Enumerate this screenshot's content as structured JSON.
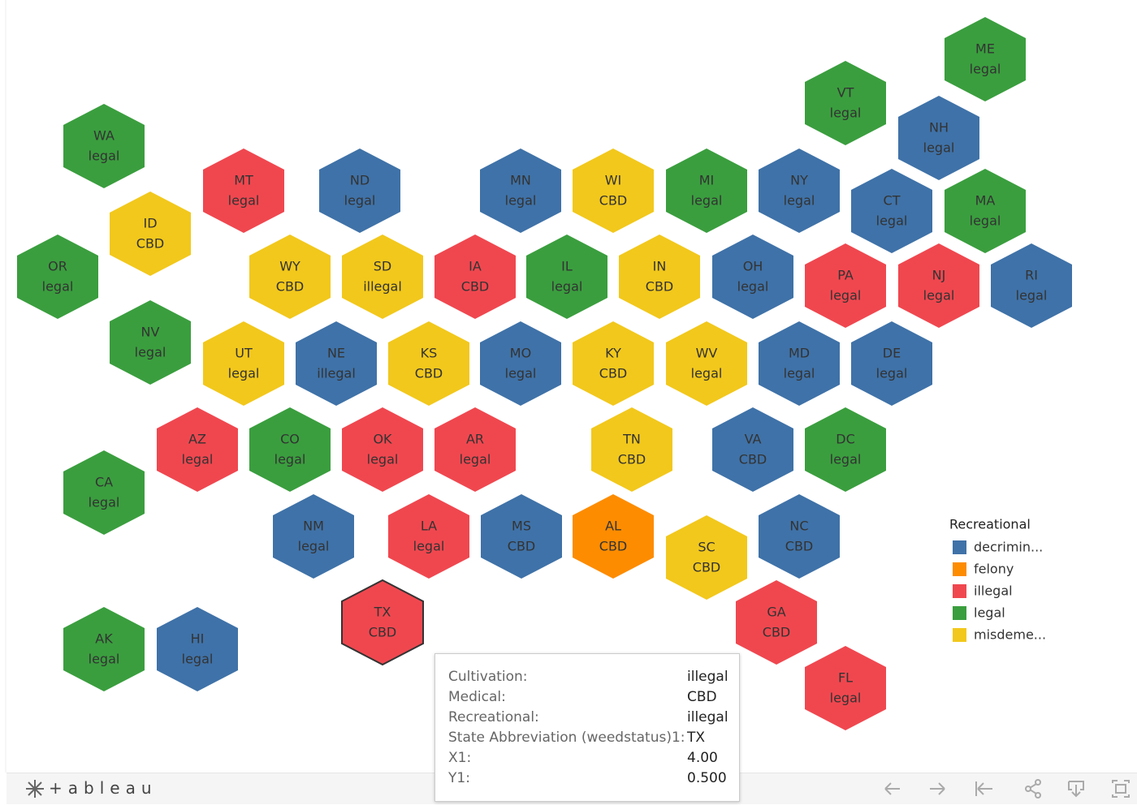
{
  "map": {
    "states": [
      {
        "abbr": "ME",
        "label": "legal",
        "color": "#3a9e3e"
      },
      {
        "abbr": "VT",
        "label": "legal",
        "color": "#3a9e3e"
      },
      {
        "abbr": "NH",
        "label": "legal",
        "color": "#3f72a8"
      },
      {
        "abbr": "WA",
        "label": "legal",
        "color": "#3a9e3e"
      },
      {
        "abbr": "MT",
        "label": "legal",
        "color": "#f0474f"
      },
      {
        "abbr": "ND",
        "label": "legal",
        "color": "#3f72a8"
      },
      {
        "abbr": "MN",
        "label": "legal",
        "color": "#3f72a8"
      },
      {
        "abbr": "WI",
        "label": "CBD",
        "color": "#f2c81c"
      },
      {
        "abbr": "MI",
        "label": "legal",
        "color": "#3a9e3e"
      },
      {
        "abbr": "NY",
        "label": "legal",
        "color": "#3f72a8"
      },
      {
        "abbr": "CT",
        "label": "legal",
        "color": "#3f72a8"
      },
      {
        "abbr": "MA",
        "label": "legal",
        "color": "#3a9e3e"
      },
      {
        "abbr": "ID",
        "label": "CBD",
        "color": "#f2c81c"
      },
      {
        "abbr": "OR",
        "label": "legal",
        "color": "#3a9e3e"
      },
      {
        "abbr": "WY",
        "label": "CBD",
        "color": "#f2c81c"
      },
      {
        "abbr": "SD",
        "label": "illegal",
        "color": "#f2c81c"
      },
      {
        "abbr": "IA",
        "label": "CBD",
        "color": "#f0474f"
      },
      {
        "abbr": "IL",
        "label": "legal",
        "color": "#3a9e3e"
      },
      {
        "abbr": "IN",
        "label": "CBD",
        "color": "#f2c81c"
      },
      {
        "abbr": "OH",
        "label": "legal",
        "color": "#3f72a8"
      },
      {
        "abbr": "PA",
        "label": "legal",
        "color": "#f0474f"
      },
      {
        "abbr": "NJ",
        "label": "legal",
        "color": "#f0474f"
      },
      {
        "abbr": "RI",
        "label": "legal",
        "color": "#3f72a8"
      },
      {
        "abbr": "NV",
        "label": "legal",
        "color": "#3a9e3e"
      },
      {
        "abbr": "UT",
        "label": "legal",
        "color": "#f2c81c"
      },
      {
        "abbr": "NE",
        "label": "illegal",
        "color": "#3f72a8"
      },
      {
        "abbr": "KS",
        "label": "CBD",
        "color": "#f2c81c"
      },
      {
        "abbr": "MO",
        "label": "legal",
        "color": "#3f72a8"
      },
      {
        "abbr": "KY",
        "label": "CBD",
        "color": "#f2c81c"
      },
      {
        "abbr": "WV",
        "label": "legal",
        "color": "#f2c81c"
      },
      {
        "abbr": "MD",
        "label": "legal",
        "color": "#3f72a8"
      },
      {
        "abbr": "DE",
        "label": "legal",
        "color": "#3f72a8"
      },
      {
        "abbr": "AZ",
        "label": "legal",
        "color": "#f0474f"
      },
      {
        "abbr": "CO",
        "label": "legal",
        "color": "#3a9e3e"
      },
      {
        "abbr": "OK",
        "label": "legal",
        "color": "#f0474f"
      },
      {
        "abbr": "AR",
        "label": "legal",
        "color": "#f0474f"
      },
      {
        "abbr": "TN",
        "label": "CBD",
        "color": "#f2c81c"
      },
      {
        "abbr": "VA",
        "label": "CBD",
        "color": "#3f72a8"
      },
      {
        "abbr": "DC",
        "label": "legal",
        "color": "#3a9e3e"
      },
      {
        "abbr": "CA",
        "label": "legal",
        "color": "#3a9e3e"
      },
      {
        "abbr": "NM",
        "label": "legal",
        "color": "#3f72a8"
      },
      {
        "abbr": "LA",
        "label": "legal",
        "color": "#f0474f"
      },
      {
        "abbr": "MS",
        "label": "CBD",
        "color": "#3f72a8"
      },
      {
        "abbr": "AL",
        "label": "CBD",
        "color": "#fd8c00"
      },
      {
        "abbr": "SC",
        "label": "CBD",
        "color": "#f2c81c"
      },
      {
        "abbr": "NC",
        "label": "CBD",
        "color": "#3f72a8"
      },
      {
        "abbr": "TX",
        "label": "CBD",
        "color": "#f0474f"
      },
      {
        "abbr": "GA",
        "label": "CBD",
        "color": "#f0474f"
      },
      {
        "abbr": "AK",
        "label": "legal",
        "color": "#3a9e3e"
      },
      {
        "abbr": "HI",
        "label": "legal",
        "color": "#3f72a8"
      },
      {
        "abbr": "FL",
        "label": "legal",
        "color": "#f0474f"
      }
    ]
  },
  "legend": {
    "title": "Recreational",
    "items": [
      {
        "name": "decrimin...",
        "color": "#3f72a8"
      },
      {
        "name": "felony",
        "color": "#fd8c00"
      },
      {
        "name": "illegal",
        "color": "#f0474f"
      },
      {
        "name": "legal",
        "color": "#3a9e3e"
      },
      {
        "name": "misdeme...",
        "color": "#f2c81c"
      }
    ]
  },
  "tooltip": {
    "rows": [
      {
        "label": "Cultivation:",
        "value": "illegal"
      },
      {
        "label": "Medical:",
        "value": "CBD"
      },
      {
        "label": "Recreational:",
        "value": "illegal"
      },
      {
        "label": "State Abbreviation (weedstatus)1:",
        "value": "TX"
      },
      {
        "label": "X1:",
        "value": "4.00"
      },
      {
        "label": "Y1:",
        "value": "0.500"
      }
    ]
  },
  "toolbar": {
    "logo": "+ableau"
  }
}
